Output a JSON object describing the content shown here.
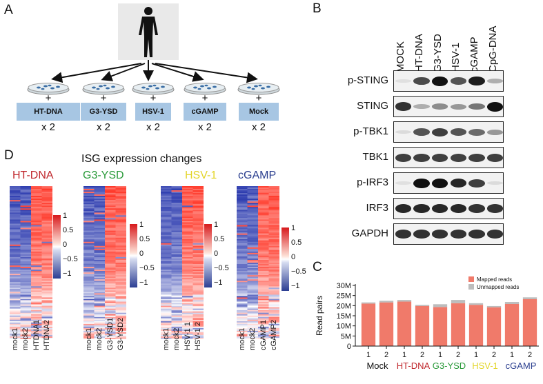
{
  "figure": {
    "panel_letters": {
      "A": "A",
      "B": "B",
      "C": "C",
      "D": "D"
    }
  },
  "panel_a": {
    "treatments": [
      {
        "label": "HT-DNA",
        "times": "x 2"
      },
      {
        "label": "G3-YSD",
        "times": "x 2"
      },
      {
        "label": "HSV-1",
        "times": "x 2"
      },
      {
        "label": "cGAMP",
        "times": "x 2"
      },
      {
        "label": "Mock",
        "times": "x 2"
      }
    ],
    "plus": "+"
  },
  "panel_b": {
    "lanes": [
      "MOCK",
      "HT-DNA",
      "G3-YSD",
      "HSV-1",
      "cGAMP",
      "CpG-DNA"
    ],
    "rows": [
      {
        "label": "p-STING",
        "intensity": [
          0.05,
          0.75,
          1.0,
          0.7,
          0.95,
          0.3
        ]
      },
      {
        "label": "STING",
        "intensity": [
          0.85,
          0.3,
          0.45,
          0.4,
          0.55,
          1.0
        ]
      },
      {
        "label": "p-TBK1",
        "intensity": [
          0.1,
          0.7,
          0.8,
          0.7,
          0.6,
          0.4
        ]
      },
      {
        "label": "TBK1",
        "intensity": [
          0.8,
          0.8,
          0.8,
          0.8,
          0.8,
          0.8
        ]
      },
      {
        "label": "p-IRF3",
        "intensity": [
          0.05,
          1.0,
          1.0,
          0.9,
          0.8,
          0.1
        ]
      },
      {
        "label": "IRF3",
        "intensity": [
          0.9,
          0.9,
          0.9,
          0.9,
          0.85,
          0.85
        ]
      },
      {
        "label": "GAPDH",
        "intensity": [
          0.85,
          0.85,
          0.85,
          0.85,
          0.85,
          0.85
        ]
      }
    ]
  },
  "panel_d": {
    "title": "ISG expression changes",
    "colorbar_ticks": [
      "1",
      "0.5",
      "0",
      "−0.5",
      "−1"
    ],
    "heatmaps": [
      {
        "name": "HT-DNA",
        "color": "#c0282d",
        "columns": [
          "mock1",
          "mock2",
          "HTDNA1",
          "HTDNA2"
        ]
      },
      {
        "name": "G3-YSD",
        "color": "#2a9a3a",
        "columns": [
          "mock1",
          "mock2",
          "G3-YSD1",
          "G3-YSD2"
        ]
      },
      {
        "name": "HSV-1",
        "color": "#e3d52a",
        "columns": [
          "mock1",
          "mock2",
          "HSV-1 1",
          "HSV-1 2"
        ]
      },
      {
        "name": "cGAMP",
        "color": "#2b3f8f",
        "columns": [
          "mock1",
          "mock2",
          "cGAMP1",
          "cGAMP2"
        ]
      }
    ]
  },
  "chart_data": {
    "type": "bar",
    "stacked": true,
    "ylabel": "Read pairs",
    "ylim": [
      0,
      30
    ],
    "yticks": [
      "0",
      "5M",
      "10M",
      "15M",
      "20M",
      "25M",
      "30M"
    ],
    "categories": [
      "1",
      "2",
      "1",
      "2",
      "1",
      "2",
      "1",
      "2",
      "1",
      "2"
    ],
    "groups": [
      {
        "name": "Mock",
        "color": "#111111"
      },
      {
        "name": "HT-DNA",
        "color": "#c0282d"
      },
      {
        "name": "G3-YSD",
        "color": "#2a9a3a"
      },
      {
        "name": "HSV-1",
        "color": "#e3d52a"
      },
      {
        "name": "cGAMP",
        "color": "#2b3f8f"
      }
    ],
    "series": [
      {
        "name": "Mapped reads",
        "color": "#f07a6a",
        "values": [
          21.0,
          21.6,
          22.0,
          19.8,
          19.3,
          21.2,
          20.4,
          19.2,
          20.8,
          23.2
        ]
      },
      {
        "name": "Unmapped reads",
        "color": "#bdbdbd",
        "values": [
          0.6,
          0.8,
          0.8,
          0.6,
          1.4,
          1.6,
          0.8,
          0.6,
          1.0,
          0.9
        ]
      }
    ],
    "legend": "top-right"
  }
}
